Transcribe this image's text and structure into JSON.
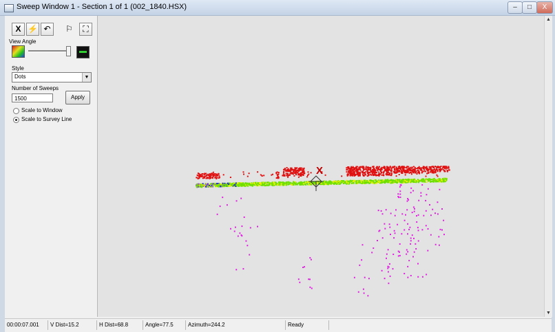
{
  "window": {
    "title": "Sweep Window 1 - Section 1 of 1 (002_1840.HSX)",
    "min": "–",
    "max": "□",
    "close": "X"
  },
  "toolbar": {
    "x_btn": "X",
    "bolt": "⚡",
    "undo": "↶",
    "flag": "⚐",
    "grid": "⛶"
  },
  "panel": {
    "view_angle_label": "View Angle",
    "style_label": "Style",
    "style_value": "Dots",
    "sweeps_label": "Number of Sweeps",
    "sweeps_value": "1500",
    "apply_label": "Apply",
    "radio_window": "Scale to Window",
    "radio_survey": "Scale to Survey Line",
    "selected_scale": "Scale to Survey Line"
  },
  "status": {
    "time": "00:00:07.001",
    "vdist": "V Dist=15.2",
    "hdist": "H Dist=68.8",
    "angle": "Angle=77.5",
    "azimuth": "Azimuth=244.2",
    "state": "Ready"
  },
  "colors": {
    "seabed_low": "#e01010",
    "seabed_green": "#6ee000",
    "seabed_yellow": "#e8f000",
    "seabed_blue": "#2030d0",
    "water_column": "#e020e0",
    "marker": "#c00000"
  },
  "icons": [
    "app-icon",
    "cursor-x-icon",
    "lightning-icon",
    "undo-icon",
    "flag-icon",
    "fit-icon",
    "color-angle-icon",
    "mono-angle-icon",
    "dropdown-icon",
    "crosshair-icon"
  ]
}
